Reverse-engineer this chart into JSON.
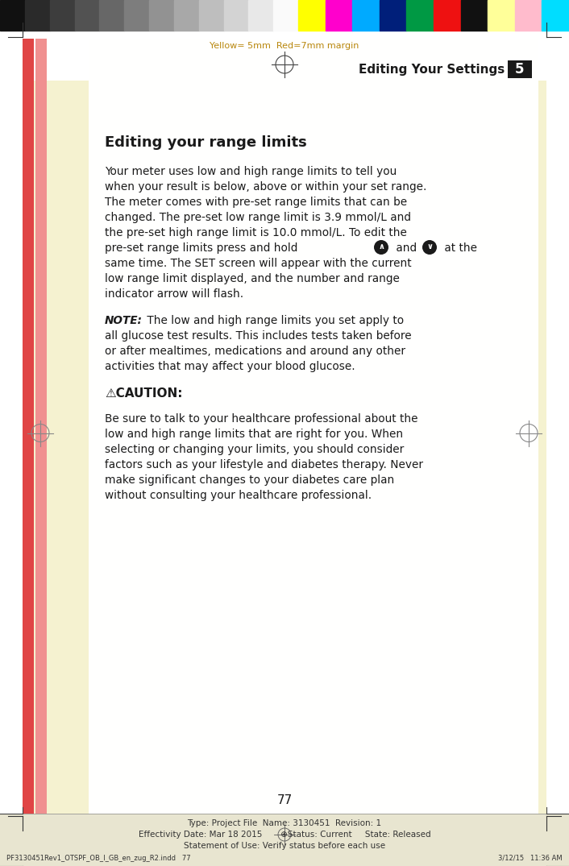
{
  "page_bg": "#f0edcc",
  "yellow_margin_text": "Yellow= 5mm  Red=7mm margin",
  "yellow_margin_color": "#b8860b",
  "header_title": "Editing Your Settings",
  "header_chapter": "5",
  "section_title": "Editing your range limits",
  "page_number": "77",
  "footer_line1": "Type: Project File  Name: 3130451  Revision: 1",
  "footer_line2": "Effectivity Date: Mar 18 2015       ⊕Status: Current     State: Released",
  "footer_line3": "Statement of Use: Verify status before each use",
  "footer_bottom_left": "PF3130451Rev1_OTSPF_OB_I_GB_en_zug_R2.indd   77",
  "footer_bottom_right": "3/12/15   11:36 AM",
  "color_bar_grays": [
    "#111111",
    "#2a2a2a",
    "#3d3d3d",
    "#525252",
    "#676767",
    "#7d7d7d",
    "#929292",
    "#a8a8a8",
    "#bebebe",
    "#d3d3d3",
    "#e8e8e8",
    "#fafafa"
  ],
  "color_bar_colors": [
    "#ffff00",
    "#ff00cc",
    "#00aaff",
    "#001f7a",
    "#009944",
    "#ee1111",
    "#111111",
    "#ffff99",
    "#ffbbcc",
    "#00ddff"
  ],
  "inner_bg": "#fffef0",
  "red_stripe": "#e04040",
  "salmon_stripe": "#f08080",
  "text_color": "#1a1a1a",
  "body_lines": [
    "Your meter uses low and high range limits to tell you",
    "when your result is below, above or within your set range.",
    "The meter comes with pre-set range limits that can be",
    "changed. The pre-set low range limit is 3.9 mmol/L and",
    "the pre-set high range limit is 10.0 mmol/L. To edit the",
    "pre-set range limits press and hold ▲ and ▼ at the",
    "same time. The SET screen will appear with the current",
    "low range limit displayed, and the number and range",
    "indicator arrow will flash."
  ],
  "note_lines": [
    "all glucose test results. This includes tests taken before",
    "or after mealtimes, medications and around any other",
    "activities that may affect your blood glucose."
  ],
  "caution_body_lines": [
    "Be sure to talk to your healthcare professional about the",
    "low and high range limits that are right for you. When",
    "selecting or changing your limits, you should consider",
    "factors such as your lifestyle and diabetes therapy. Never",
    "make significant changes to your diabetes care plan",
    "without consulting your healthcare professional."
  ]
}
